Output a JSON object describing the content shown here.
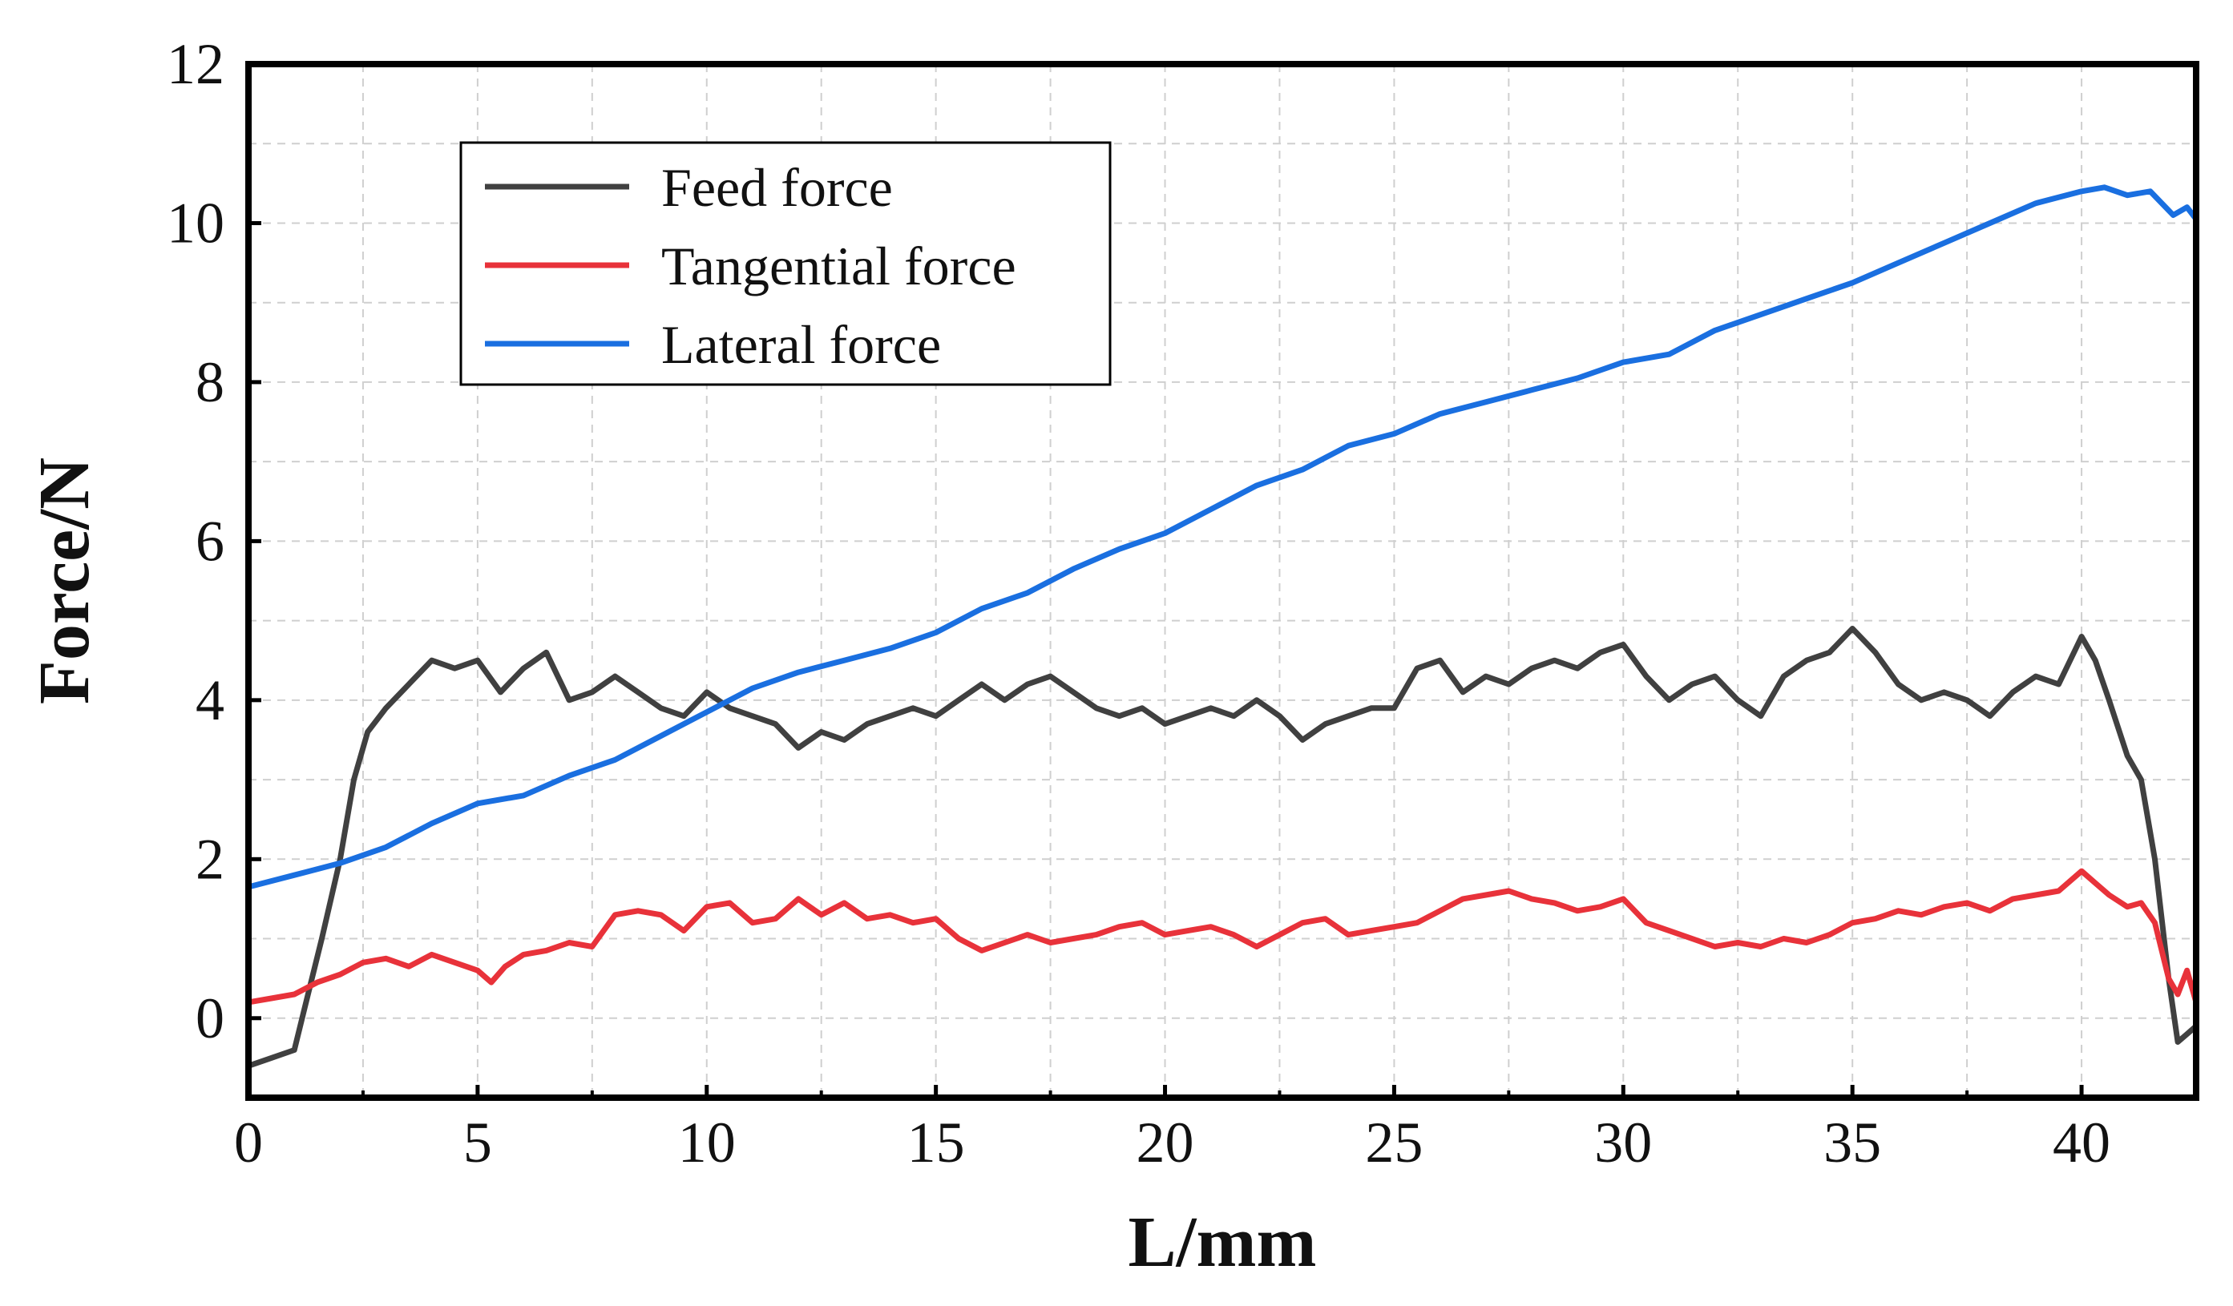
{
  "chart_data": {
    "type": "line",
    "title": "",
    "xlabel": "L/mm",
    "ylabel": "Force/N",
    "xlim": [
      0,
      42.5
    ],
    "ylim": [
      -1,
      12
    ],
    "x_ticks": [
      0,
      5,
      10,
      15,
      20,
      25,
      30,
      35,
      40
    ],
    "y_ticks": [
      0,
      2,
      4,
      6,
      8,
      10,
      12
    ],
    "grid": true,
    "grid_style": "dashed",
    "legend_position": "top-left",
    "series": [
      {
        "name": "Feed force",
        "color": "#404040",
        "x": [
          0,
          0.5,
          1.0,
          1.3,
          1.6,
          2.0,
          2.3,
          2.6,
          3.0,
          3.5,
          4.0,
          4.5,
          5.0,
          5.5,
          6.0,
          6.5,
          7.0,
          7.5,
          8.0,
          8.5,
          9.0,
          9.5,
          10.0,
          10.5,
          11.0,
          11.5,
          12.0,
          12.5,
          13.0,
          13.5,
          14.0,
          14.5,
          15.0,
          15.5,
          16.0,
          16.5,
          17.0,
          17.5,
          18.0,
          18.5,
          19.0,
          19.5,
          20.0,
          20.5,
          21.0,
          21.5,
          22.0,
          22.5,
          23.0,
          23.5,
          24.0,
          24.5,
          25.0,
          25.5,
          26.0,
          26.5,
          27.0,
          27.5,
          28.0,
          28.5,
          29.0,
          29.5,
          30.0,
          30.5,
          31.0,
          31.5,
          32.0,
          32.5,
          33.0,
          33.5,
          34.0,
          34.5,
          35.0,
          35.5,
          36.0,
          36.5,
          37.0,
          37.5,
          38.0,
          38.5,
          39.0,
          39.5,
          40.0,
          40.3,
          40.6,
          41.0,
          41.3,
          41.6,
          41.9,
          42.1,
          42.3,
          42.5
        ],
        "values": [
          -0.6,
          -0.5,
          -0.4,
          0.3,
          1.0,
          2.0,
          3.0,
          3.6,
          3.9,
          4.2,
          4.5,
          4.4,
          4.5,
          4.1,
          4.4,
          4.6,
          4.0,
          4.1,
          4.3,
          4.1,
          3.9,
          3.8,
          4.1,
          3.9,
          3.8,
          3.7,
          3.4,
          3.6,
          3.5,
          3.7,
          3.8,
          3.9,
          3.8,
          4.0,
          4.2,
          4.0,
          4.2,
          4.3,
          4.1,
          3.9,
          3.8,
          3.9,
          3.7,
          3.8,
          3.9,
          3.8,
          4.0,
          3.8,
          3.5,
          3.7,
          3.8,
          3.9,
          3.9,
          4.4,
          4.5,
          4.1,
          4.3,
          4.2,
          4.4,
          4.5,
          4.4,
          4.6,
          4.7,
          4.3,
          4.0,
          4.2,
          4.3,
          4.0,
          3.8,
          4.3,
          4.5,
          4.6,
          4.9,
          4.6,
          4.2,
          4.0,
          4.1,
          4.0,
          3.8,
          4.1,
          4.3,
          4.2,
          4.8,
          4.5,
          4.0,
          3.3,
          3.0,
          2.0,
          0.5,
          -0.3,
          -0.2,
          -0.1
        ]
      },
      {
        "name": "Tangential force",
        "color": "#e8323a",
        "x": [
          0,
          0.5,
          1.0,
          1.5,
          2.0,
          2.5,
          3.0,
          3.5,
          4.0,
          4.5,
          5.0,
          5.3,
          5.6,
          6.0,
          6.5,
          7.0,
          7.5,
          8.0,
          8.5,
          9.0,
          9.5,
          10.0,
          10.5,
          11.0,
          11.5,
          12.0,
          12.5,
          13.0,
          13.5,
          14.0,
          14.5,
          15.0,
          15.5,
          16.0,
          16.5,
          17.0,
          17.5,
          18.0,
          18.5,
          19.0,
          19.5,
          20.0,
          20.5,
          21.0,
          21.5,
          22.0,
          22.5,
          23.0,
          23.5,
          24.0,
          24.5,
          25.0,
          25.5,
          26.0,
          26.5,
          27.0,
          27.5,
          28.0,
          28.5,
          29.0,
          29.5,
          30.0,
          30.5,
          31.0,
          31.5,
          32.0,
          32.5,
          33.0,
          33.5,
          34.0,
          34.5,
          35.0,
          35.5,
          36.0,
          36.5,
          37.0,
          37.5,
          38.0,
          38.5,
          39.0,
          39.5,
          40.0,
          40.3,
          40.6,
          41.0,
          41.3,
          41.6,
          41.9,
          42.1,
          42.3,
          42.5
        ],
        "values": [
          0.2,
          0.25,
          0.3,
          0.45,
          0.55,
          0.7,
          0.75,
          0.65,
          0.8,
          0.7,
          0.6,
          0.45,
          0.65,
          0.8,
          0.85,
          0.95,
          0.9,
          1.3,
          1.35,
          1.3,
          1.1,
          1.4,
          1.45,
          1.2,
          1.25,
          1.5,
          1.3,
          1.45,
          1.25,
          1.3,
          1.2,
          1.25,
          1.0,
          0.85,
          0.95,
          1.05,
          0.95,
          1.0,
          1.05,
          1.15,
          1.2,
          1.05,
          1.1,
          1.15,
          1.05,
          0.9,
          1.05,
          1.2,
          1.25,
          1.05,
          1.1,
          1.15,
          1.2,
          1.35,
          1.5,
          1.55,
          1.6,
          1.5,
          1.45,
          1.35,
          1.4,
          1.5,
          1.2,
          1.1,
          1.0,
          0.9,
          0.95,
          0.9,
          1.0,
          0.95,
          1.05,
          1.2,
          1.25,
          1.35,
          1.3,
          1.4,
          1.45,
          1.35,
          1.5,
          1.55,
          1.6,
          1.85,
          1.7,
          1.55,
          1.4,
          1.45,
          1.2,
          0.5,
          0.3,
          0.6,
          0.2
        ]
      },
      {
        "name": "Lateral force",
        "color": "#1a6fe0",
        "x": [
          0,
          1,
          2,
          3,
          4,
          5,
          6,
          7,
          8,
          9,
          10,
          11,
          12,
          13,
          14,
          15,
          16,
          17,
          18,
          19,
          20,
          21,
          22,
          23,
          24,
          25,
          26,
          27,
          28,
          29,
          30,
          31,
          32,
          33,
          34,
          35,
          36,
          37,
          38,
          39,
          40,
          40.5,
          41,
          41.5,
          42,
          42.3,
          42.5
        ],
        "values": [
          1.65,
          1.8,
          1.95,
          2.15,
          2.45,
          2.7,
          2.8,
          3.05,
          3.25,
          3.55,
          3.85,
          4.15,
          4.35,
          4.5,
          4.65,
          4.85,
          5.15,
          5.35,
          5.65,
          5.9,
          6.1,
          6.4,
          6.7,
          6.9,
          7.2,
          7.35,
          7.6,
          7.75,
          7.9,
          8.05,
          8.25,
          8.35,
          8.65,
          8.85,
          9.05,
          9.25,
          9.5,
          9.75,
          10.0,
          10.25,
          10.4,
          10.45,
          10.35,
          10.4,
          10.1,
          10.2,
          10.05
        ]
      }
    ]
  }
}
